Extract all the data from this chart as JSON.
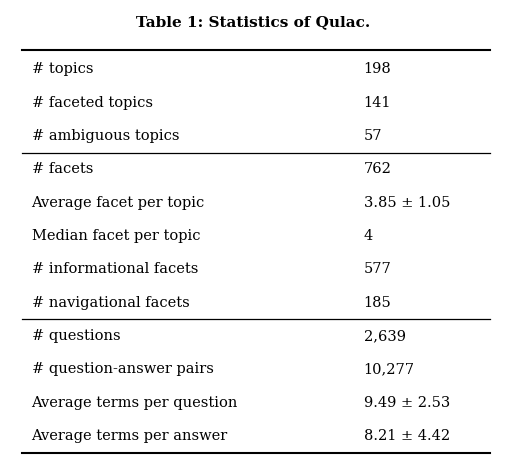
{
  "title": "Table 1: Statistics of Qulac.",
  "rows": [
    [
      "# topics",
      "198"
    ],
    [
      "# faceted topics",
      "141"
    ],
    [
      "# ambiguous topics",
      "57"
    ],
    [
      "# facets",
      "762"
    ],
    [
      "Average facet per topic",
      "3.85 ± 1.05"
    ],
    [
      "Median facet per topic",
      "4"
    ],
    [
      "# informational facets",
      "577"
    ],
    [
      "# navigational facets",
      "185"
    ],
    [
      "# questions",
      "2,639"
    ],
    [
      "# question-answer pairs",
      "10,277"
    ],
    [
      "Average terms per question",
      "9.49 ± 2.53"
    ],
    [
      "Average terms per answer",
      "8.21 ± 4.42"
    ]
  ],
  "section_breaks_after": [
    2,
    7
  ],
  "bg_color": "#ffffff",
  "text_color": "#000000",
  "title_fontsize": 11,
  "body_fontsize": 10.5
}
